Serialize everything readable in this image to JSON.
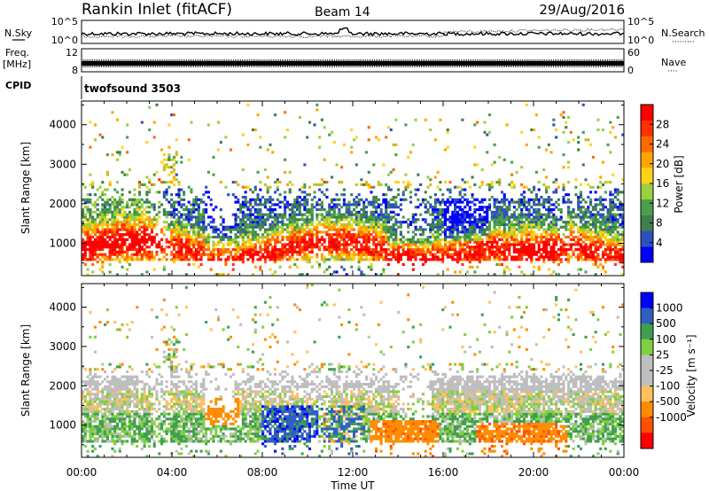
{
  "header": {
    "station": "Rankin Inlet (fitACF)",
    "beam": "Beam 14",
    "date": "29/Aug/2016"
  },
  "nsky_panel": {
    "left_label": "N.Sky",
    "right_label": "N.Search",
    "right_label_dots": "·········",
    "left_ticks": [
      "10^5",
      "10^0"
    ],
    "right_ticks": [
      "10^5",
      "10^0"
    ]
  },
  "freq_panel": {
    "left_label_line1": "Freq.",
    "left_label_line2": "[MHz]",
    "left_ticks": [
      "12",
      "8"
    ],
    "right_label": "Nave",
    "right_label_dots": "····",
    "right_ticks": [
      "60",
      "0"
    ]
  },
  "cpid_panel": {
    "label": "CPID",
    "program": "twofsound 3503"
  },
  "colors": {
    "power_scale": [
      "#0000ff",
      "#2f4fbf",
      "#3f7f4f",
      "#4aa04a",
      "#9bd040",
      "#ffd21a",
      "#ffa500",
      "#ff6a00",
      "#ff3000",
      "#ff0000"
    ],
    "velocity_scale": [
      "#ff0000",
      "#ff5000",
      "#ff8c00",
      "#ffc060",
      "#bebebe",
      "#bebebe",
      "#7fd040",
      "#3f9f4f",
      "#2f5fbf",
      "#0000ff"
    ],
    "gray": "#bebebe"
  },
  "chart_data": [
    {
      "type": "heatmap",
      "name": "power",
      "ylabel": "Slant Range [km]",
      "yticks": [
        1000,
        2000,
        3000,
        4000
      ],
      "ylim": [
        180,
        4600
      ],
      "xlim": [
        0,
        24
      ],
      "xticks": [
        0,
        4,
        8,
        12,
        16,
        20,
        24
      ],
      "colorbar": {
        "label": "Power [dB]",
        "ticks": [
          4,
          8,
          12,
          16,
          20,
          24,
          28
        ],
        "range": [
          0,
          32
        ]
      }
    },
    {
      "type": "heatmap",
      "name": "velocity",
      "ylabel": "Slant Range [km]",
      "xlabel": "Time UT",
      "yticks": [
        1000,
        2000,
        3000,
        4000
      ],
      "ylim": [
        180,
        4600
      ],
      "xlim": [
        0,
        24
      ],
      "xticks": [
        0,
        4,
        8,
        12,
        16,
        20,
        24
      ],
      "xticklabels": [
        "00:00",
        "04:00",
        "08:00",
        "12:00",
        "16:00",
        "20:00",
        "00:00"
      ],
      "colorbar": {
        "label": "Velocity [m s⁻¹]",
        "ticks": [
          "1000",
          "500",
          "100",
          "25",
          "-25",
          "-100",
          "-500",
          "-1000"
        ]
      }
    }
  ]
}
